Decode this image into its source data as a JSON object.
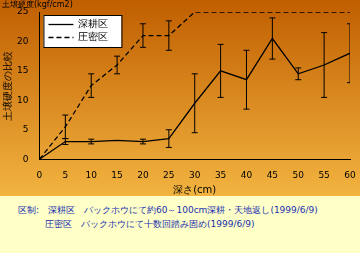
{
  "chart_data": {
    "type": "line",
    "annotations": [
      "土壌硬度(kgf/cm2)"
    ],
    "x_label": "深さ(cm)",
    "y_label": "土壌硬度の比較",
    "x": [
      0,
      5,
      10,
      15,
      20,
      25,
      30,
      35,
      40,
      45,
      50,
      55,
      60
    ],
    "series": [
      {
        "name": "深耕区",
        "color": "#000000",
        "line_style": "solid",
        "values": [
          0,
          3,
          3,
          3.2,
          3,
          3.5,
          9.5,
          15,
          13.5,
          20.5,
          14.5,
          16,
          18
        ],
        "errors": [
          null,
          0.5,
          0.4,
          null,
          0.4,
          1.5,
          5,
          4.5,
          5,
          3.5,
          1,
          5.5,
          5
        ]
      },
      {
        "name": "圧密区",
        "color": "#000000",
        "line_style": "dashed",
        "values": [
          0,
          5.5,
          12.5,
          16,
          21,
          21,
          25,
          25,
          25,
          25,
          25,
          25,
          25
        ],
        "errors": [
          null,
          2,
          2,
          1.5,
          2,
          2.5,
          null,
          null,
          null,
          null,
          null,
          null,
          null
        ]
      }
    ],
    "xlim": [
      0,
      60
    ],
    "xticks": [
      0,
      5,
      10,
      15,
      20,
      25,
      30,
      35,
      40,
      45,
      50,
      55,
      60
    ],
    "ylim": [
      0,
      25
    ],
    "yticks": [
      0,
      5,
      10,
      15,
      20,
      25
    ],
    "grid": false,
    "legend": "top-left",
    "caption": [
      "区制:　深耕区　バックホウにて約60～100cm深耕・天地返し(1999/6/9)",
      "　　　圧密区　バックホウにて十数回踏み固め(1999/6/9)"
    ]
  }
}
